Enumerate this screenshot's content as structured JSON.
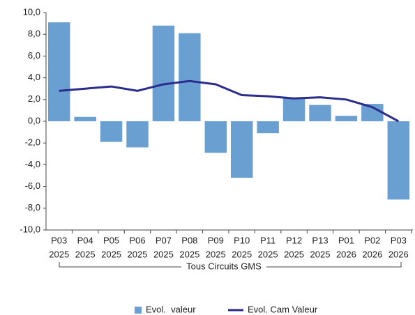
{
  "chart_data": {
    "type": "bar_line",
    "categories": [
      [
        "P03",
        "2025"
      ],
      [
        "P04",
        "2025"
      ],
      [
        "P05",
        "2025"
      ],
      [
        "P06",
        "2025"
      ],
      [
        "P07",
        "2025"
      ],
      [
        "P08",
        "2025"
      ],
      [
        "P09",
        "2025"
      ],
      [
        "P10",
        "2025"
      ],
      [
        "P11",
        "2025"
      ],
      [
        "P12",
        "2025"
      ],
      [
        "P13",
        "2025"
      ],
      [
        "P01",
        "2026"
      ],
      [
        "P02",
        "2026"
      ],
      [
        "P03",
        "2026"
      ]
    ],
    "group_label": "Tous Circuits GMS",
    "series": [
      {
        "name": "Evol.  valeur",
        "type": "bar",
        "color": "#6a9fd2",
        "values": [
          9.1,
          0.4,
          -1.9,
          -2.4,
          8.8,
          8.1,
          -2.9,
          -5.2,
          -1.1,
          2.1,
          1.5,
          0.5,
          1.6,
          -7.2
        ]
      },
      {
        "name": "Evol. Cam Valeur",
        "type": "line",
        "color": "#2b2d8c",
        "values": [
          2.8,
          3.0,
          3.2,
          2.8,
          3.4,
          3.7,
          3.4,
          2.4,
          2.3,
          2.1,
          2.2,
          2.0,
          1.3,
          0.0
        ]
      }
    ],
    "ylim": [
      -10,
      10
    ],
    "yticks": [
      {
        "value": -10,
        "label": "-10,0"
      },
      {
        "value": -8,
        "label": "-8,0"
      },
      {
        "value": -6,
        "label": "-6,0"
      },
      {
        "value": -4,
        "label": "-4,0"
      },
      {
        "value": -2,
        "label": "-2,0"
      },
      {
        "value": 0,
        "label": "0,0"
      },
      {
        "value": 2,
        "label": "2,0"
      },
      {
        "value": 4,
        "label": "4,0"
      },
      {
        "value": 6,
        "label": "6,0"
      },
      {
        "value": 8,
        "label": "8,0"
      },
      {
        "value": 10,
        "label": "10,0"
      }
    ],
    "grid": false,
    "legend": "bottom"
  }
}
